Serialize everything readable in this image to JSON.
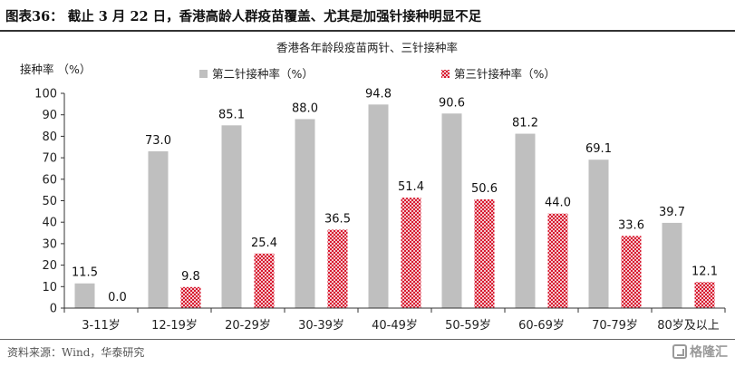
{
  "header": {
    "title": "图表36： 截止 3 月 22 日，香港高龄人群疫苗覆盖、尤其是加强针接种明显不足"
  },
  "footer": {
    "source": "资料来源：Wind，华泰研究",
    "watermark": "格隆汇"
  },
  "colors": {
    "second": "#bfbfbf",
    "third": "#c8102e",
    "axis": "#333333"
  },
  "chart_data": {
    "type": "bar",
    "title": "香港各年龄段疫苗两针、三针接种率",
    "ylabel": "接种率 （%）",
    "ylim": [
      0,
      100
    ],
    "yticks": [
      0,
      10,
      20,
      30,
      40,
      50,
      60,
      70,
      80,
      90,
      100
    ],
    "legend_position": "top",
    "categories": [
      "3-11岁",
      "12-19岁",
      "20-29岁",
      "30-39岁",
      "40-49岁",
      "50-59岁",
      "60-69岁",
      "70-79岁",
      "80岁及以上"
    ],
    "series": [
      {
        "name": "第二针接种率（%）",
        "values": [
          11.5,
          73.0,
          85.1,
          88.0,
          94.8,
          90.6,
          81.2,
          69.1,
          39.7
        ],
        "labels": [
          "11.5",
          "73.0",
          "85.1",
          "88.0",
          "94.8",
          "90.6",
          "81.2",
          "69.1",
          "39.7"
        ]
      },
      {
        "name": "第三针接种率（%）",
        "values": [
          0.0,
          9.8,
          25.4,
          36.5,
          51.4,
          50.6,
          44.0,
          33.6,
          12.1
        ],
        "labels": [
          "0.0",
          "9.8",
          "25.4",
          "36.5",
          "51.4",
          "50.6",
          "44.0",
          "33.6",
          "12.1"
        ]
      }
    ]
  }
}
